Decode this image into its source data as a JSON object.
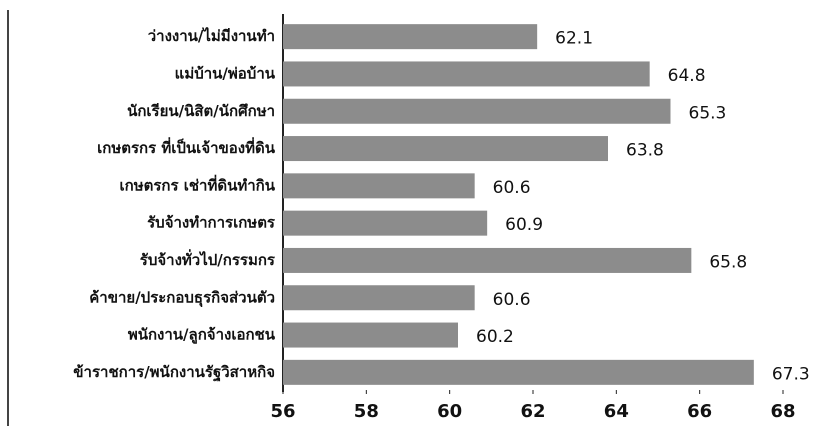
{
  "chart_data": {
    "type": "bar",
    "orientation": "horizontal",
    "categories": [
      "ว่างงาน/ไม่มีงานทำ",
      "แม่บ้าน/พ่อบ้าน",
      "นักเรียน/นิสิต/นักศึกษา",
      "เกษตรกร ที่เป็นเจ้าของที่ดิน",
      "เกษตรกร เช่าที่ดินทำกิน",
      "รับจ้างทำการเกษตร",
      "รับจ้างทั่วไป/กรรมกร",
      "ค้าขาย/ประกอบธุรกิจส่วนตัว",
      "พนักงาน/ลูกจ้างเอกชน",
      "ข้าราชการ/พนักงานรัฐวิสาหกิจ"
    ],
    "values": [
      62.1,
      64.8,
      65.3,
      63.8,
      60.6,
      60.9,
      65.8,
      60.6,
      60.2,
      67.3
    ],
    "color": "#8c8c8c",
    "xlim": [
      56,
      68
    ],
    "xticks": [
      56,
      58,
      60,
      62,
      64,
      66,
      68
    ]
  }
}
